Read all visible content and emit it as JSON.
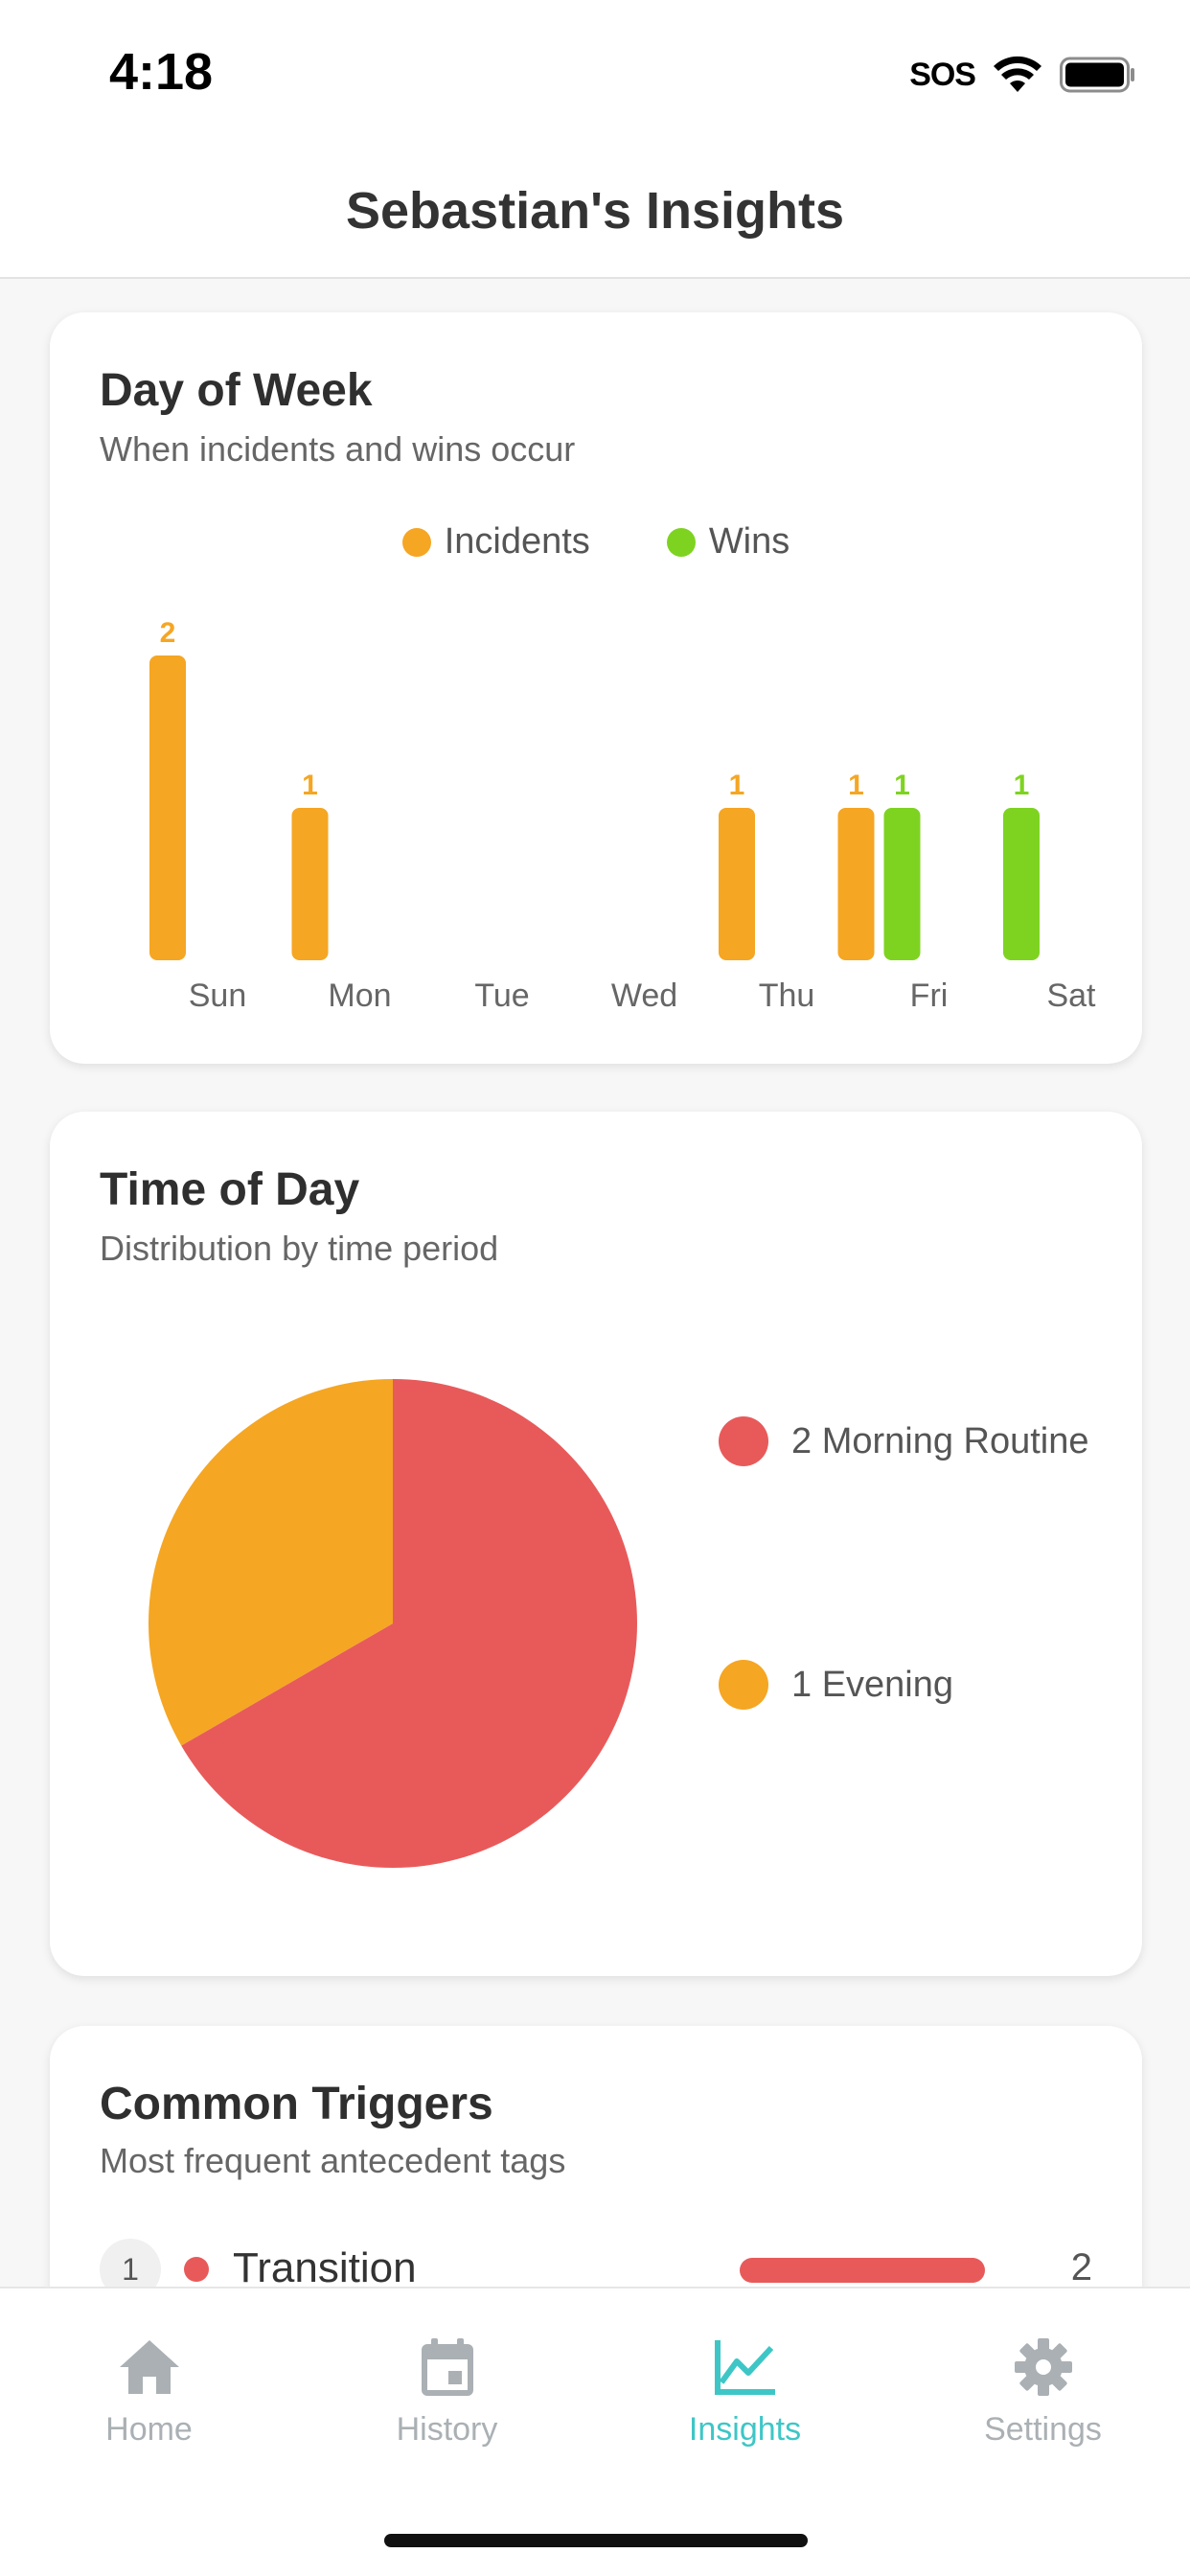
{
  "status_bar": {
    "time": "4:18",
    "sos": "SOS"
  },
  "header": {
    "title": "Sebastian's Insights"
  },
  "day_of_week": {
    "title": "Day of Week",
    "subtitle": "When incidents and wins occur",
    "legend": {
      "incidents": "Incidents",
      "wins": "Wins"
    },
    "colors": {
      "incidents": "#F5A623",
      "wins": "#7ED321"
    },
    "chart_data": {
      "type": "bar",
      "categories": [
        "Sun",
        "Mon",
        "Tue",
        "Wed",
        "Thu",
        "Fri",
        "Sat"
      ],
      "series": [
        {
          "name": "Incidents",
          "values": [
            2,
            1,
            0,
            0,
            1,
            1,
            0
          ]
        },
        {
          "name": "Wins",
          "values": [
            0,
            0,
            0,
            0,
            0,
            1,
            1
          ]
        }
      ],
      "ylim": [
        0,
        2
      ]
    }
  },
  "time_of_day": {
    "title": "Time of Day",
    "subtitle": "Distribution by time period",
    "chart_data": {
      "type": "pie",
      "slices": [
        {
          "label": "2 Morning Routine",
          "value": 2,
          "color": "#E85A5A"
        },
        {
          "label": "1 Evening",
          "value": 1,
          "color": "#F5A623"
        }
      ]
    }
  },
  "common_triggers": {
    "title": "Common Triggers",
    "subtitle": "Most frequent antecedent tags",
    "items": [
      {
        "rank": "1",
        "label": "Transition",
        "count": "2",
        "value": 2,
        "max": 2,
        "color": "#E85A5A"
      }
    ]
  },
  "tabs": [
    {
      "label": "Home",
      "icon": "home-icon",
      "active": false
    },
    {
      "label": "History",
      "icon": "calendar-icon",
      "active": false
    },
    {
      "label": "Insights",
      "icon": "chart-line-icon",
      "active": true
    },
    {
      "label": "Settings",
      "icon": "gear-icon",
      "active": false
    }
  ],
  "theme": {
    "accent": "#3EC6C6",
    "inactive": "#AAB0B4"
  }
}
